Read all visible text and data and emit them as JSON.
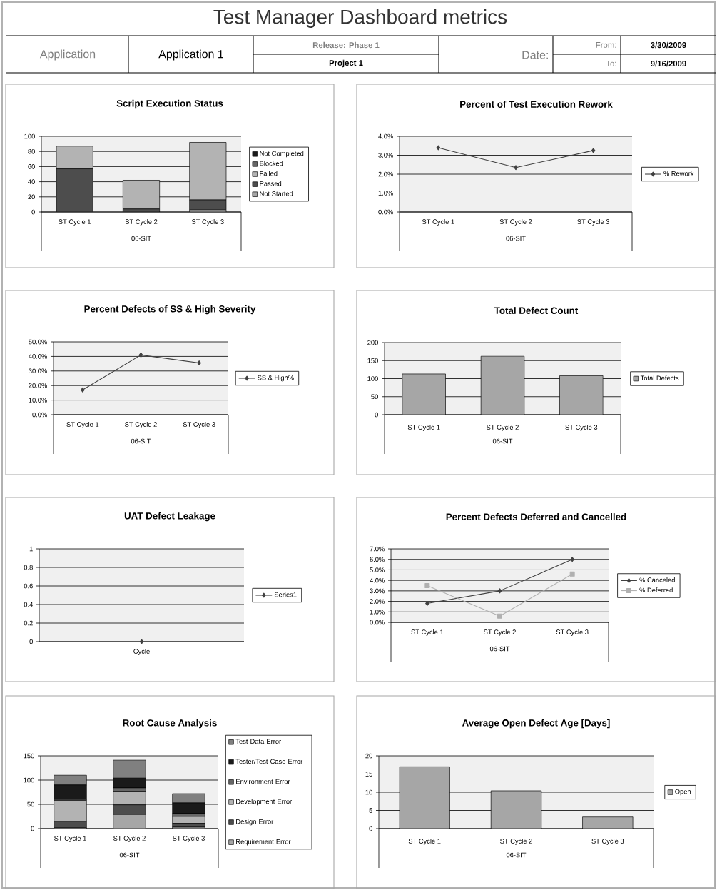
{
  "chart_data": [
    {
      "type": "other",
      "title": "Test Manager Dashboard metrics",
      "annotations": [
        "Application",
        "Application 1",
        "Release: Phase 1",
        "Project 1",
        "Date:",
        "From:",
        "3/30/2009",
        "To:",
        "9/16/2009"
      ]
    },
    {
      "type": "bar",
      "title": "Script Execution Status",
      "categories": [
        "ST Cycle 1",
        "ST Cycle 2",
        "ST Cycle 3"
      ],
      "xlabel": "06-SIT",
      "stacked": true,
      "grid": "y",
      "legend": "right",
      "ylim": [
        0,
        100
      ],
      "yticks": [
        0,
        20,
        40,
        60,
        80,
        100
      ],
      "series": [
        {
          "name": "Not Started",
          "color": "#a6a6a6",
          "values": [
            null,
            0,
            3
          ]
        },
        {
          "name": "Passed",
          "color": "#4d4d4d",
          "values": [
            57,
            4,
            13
          ]
        },
        {
          "name": "Failed",
          "color": "#b3b3b3",
          "values": [
            30,
            38,
            76
          ]
        },
        {
          "name": "Blocked",
          "color": "#666666",
          "values": [
            0,
            0,
            0
          ]
        },
        {
          "name": "Not Completed",
          "color": "#1a1a1a",
          "values": [
            0,
            0,
            0
          ]
        }
      ]
    },
    {
      "type": "line",
      "title": "Percent of Test Execution Rework",
      "categories": [
        "ST Cycle 1",
        "ST Cycle 2",
        "ST Cycle 3"
      ],
      "xlabel": "06-SIT",
      "grid": "y",
      "legend": "right",
      "marker": "diamond",
      "ylim": [
        0,
        4
      ],
      "yticks": [
        {
          "value": 0,
          "label": "0.0%"
        },
        {
          "value": 1,
          "label": "1.0%"
        },
        {
          "value": 2,
          "label": "2.0%"
        },
        {
          "value": 3,
          "label": "3.0%"
        },
        {
          "value": 4,
          "label": "4.0%"
        }
      ],
      "series": [
        {
          "name": "% Rework",
          "color": "#404040",
          "values": [
            3.4,
            2.35,
            3.25
          ]
        }
      ]
    },
    {
      "type": "line",
      "title": "Percent Defects of SS & High Severity",
      "categories": [
        "ST Cycle 1",
        "ST Cycle 2",
        "ST Cycle 3"
      ],
      "xlabel": "06-SIT",
      "grid": "y",
      "legend": "right",
      "marker": "diamond",
      "ylim": [
        0,
        50
      ],
      "yticks": [
        {
          "value": 0,
          "label": "0.0%"
        },
        {
          "value": 10,
          "label": "10.0%"
        },
        {
          "value": 20,
          "label": "20.0%"
        },
        {
          "value": 30,
          "label": "30.0%"
        },
        {
          "value": 40,
          "label": "40.0%"
        },
        {
          "value": 50,
          "label": "50.0%"
        }
      ],
      "series": [
        {
          "name": "SS & High%",
          "color": "#404040",
          "values": [
            17,
            41,
            35.5
          ]
        }
      ]
    },
    {
      "type": "bar",
      "title": "Total Defect Count",
      "categories": [
        "ST Cycle 1",
        "ST Cycle 2",
        "ST Cycle 3"
      ],
      "xlabel": "06-SIT",
      "grid": "y",
      "legend": "right",
      "ylim": [
        0,
        200
      ],
      "yticks": [
        0,
        50,
        100,
        150,
        200
      ],
      "series": [
        {
          "name": "Total Defects",
          "color": "#a6a6a6",
          "values": [
            113,
            162,
            108
          ]
        }
      ]
    },
    {
      "type": "line",
      "title": "UAT Defect Leakage",
      "categories": [
        "Cycle"
      ],
      "grid": "y",
      "legend": "right",
      "marker": "diamond",
      "ylim": [
        0,
        1
      ],
      "yticks": [
        0,
        0.2,
        0.4,
        0.6,
        0.8,
        1
      ],
      "series": [
        {
          "name": "Series1",
          "color": "#404040",
          "values": [
            0
          ]
        }
      ]
    },
    {
      "type": "line",
      "title": "Percent Defects Deferred and Cancelled",
      "categories": [
        "ST Cycle 1",
        "ST Cycle 2",
        "ST Cycle 3"
      ],
      "xlabel": "06-SIT",
      "grid": "y",
      "legend": "right",
      "ylim": [
        0,
        7
      ],
      "yticks": [
        {
          "value": 0,
          "label": "0.0%"
        },
        {
          "value": 1,
          "label": "1.0%"
        },
        {
          "value": 2,
          "label": "2.0%"
        },
        {
          "value": 3,
          "label": "3.0%"
        },
        {
          "value": 4,
          "label": "4.0%"
        },
        {
          "value": 5,
          "label": "5.0%"
        },
        {
          "value": 6,
          "label": "6.0%"
        },
        {
          "value": 7,
          "label": "7.0%"
        }
      ],
      "series": [
        {
          "name": "% Canceled",
          "color": "#404040",
          "marker": "diamond",
          "values": [
            1.8,
            3.0,
            6.0
          ]
        },
        {
          "name": "% Deferred",
          "color": "#b0b0b0",
          "marker": "square",
          "values": [
            3.5,
            0.6,
            4.6
          ]
        }
      ]
    },
    {
      "type": "bar",
      "title": "Root Cause Analysis",
      "categories": [
        "ST Cycle 1",
        "ST Cycle 2",
        "ST Cycle 3"
      ],
      "xlabel": "06-SIT",
      "stacked": true,
      "grid": "y",
      "legend": "right",
      "ylim": [
        0,
        150
      ],
      "yticks": [
        0,
        50,
        100,
        150
      ],
      "series": [
        {
          "name": "Requirement Error",
          "color": "#a6a6a6",
          "values": [
            2,
            29,
            3
          ]
        },
        {
          "name": "Design Error",
          "color": "#4d4d4d",
          "values": [
            13,
            20,
            8
          ]
        },
        {
          "name": "Development Error",
          "color": "#b3b3b3",
          "values": [
            43,
            28,
            14
          ]
        },
        {
          "name": "Environment Error",
          "color": "#666666",
          "values": [
            2,
            7,
            6
          ]
        },
        {
          "name": "Tester/Test Case Error",
          "color": "#1a1a1a",
          "values": [
            30,
            20,
            22
          ]
        },
        {
          "name": "Test Data Error",
          "color": "#808080",
          "values": [
            20,
            37,
            19
          ]
        }
      ]
    },
    {
      "type": "bar",
      "title": "Average Open Defect Age [Days]",
      "categories": [
        "ST Cycle 1",
        "ST Cycle 2",
        "ST Cycle 3"
      ],
      "xlabel": "06-SIT",
      "grid": "y",
      "legend": "right",
      "ylim": [
        0,
        20
      ],
      "yticks": [
        0,
        5,
        10,
        15,
        20
      ],
      "series": [
        {
          "name": "Open",
          "color": "#a6a6a6",
          "values": [
            17,
            10.4,
            3.2
          ]
        }
      ]
    }
  ]
}
